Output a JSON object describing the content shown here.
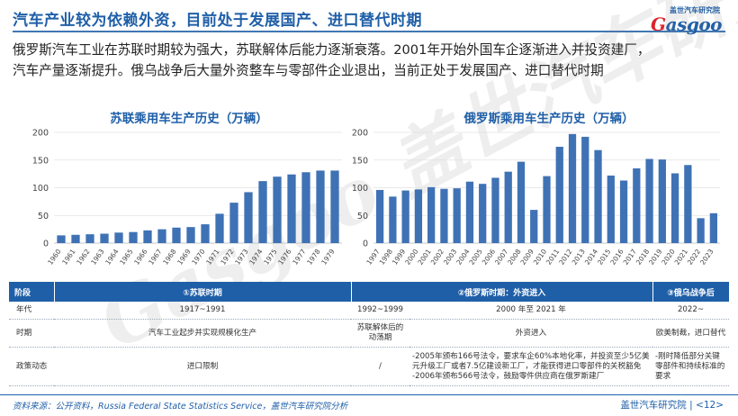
{
  "header": {
    "title": "汽车产业较为依赖外资，目前处于发展国产、进口替代时期",
    "logo_top": "盖世汽车研究院",
    "logo_main_a": "G",
    "logo_main_b": "asgoo"
  },
  "description": [
    "俄罗斯汽车工业在苏联时期较为强大，苏联解体后能力逐渐衰落。2001年开始外国车企逐渐进入并投资建厂，",
    "汽车产量逐渐提升。俄乌战争后大量外资整车与零部件企业退出，当前正处于发展国产、进口替代时期"
  ],
  "watermark": "Gasgoo 盖世汽车研究院",
  "chart_data": [
    {
      "type": "bar",
      "title": "苏联乘用车生产历史（万辆）",
      "categories": [
        "1960",
        "1961",
        "1962",
        "1963",
        "1964",
        "1965",
        "1966",
        "1967",
        "1968",
        "1969",
        "1970",
        "1971",
        "1972",
        "1973",
        "1974",
        "1975",
        "1976",
        "1977",
        "1978",
        "1979"
      ],
      "values": [
        14,
        15,
        16,
        17,
        19,
        20,
        23,
        25,
        28,
        29,
        34,
        53,
        73,
        92,
        112,
        120,
        124,
        128,
        131,
        131
      ],
      "ylim": [
        0,
        200
      ],
      "yticks": [
        0,
        50,
        100,
        150,
        200
      ],
      "color": "#3f72b5",
      "grid": true
    },
    {
      "type": "bar",
      "title": "俄罗斯乘用车生产历史（万辆）",
      "categories": [
        "1997",
        "1998",
        "1999",
        "2000",
        "2001",
        "2002",
        "2003",
        "2004",
        "2005",
        "2006",
        "2007",
        "2008",
        "2009",
        "2010",
        "2011",
        "2012",
        "2013",
        "2014",
        "2015",
        "2016",
        "2017",
        "2018",
        "2019",
        "2020",
        "2021",
        "2022",
        "2023"
      ],
      "values": [
        96,
        84,
        95,
        97,
        101,
        98,
        99,
        111,
        107,
        118,
        129,
        147,
        60,
        121,
        174,
        197,
        192,
        168,
        122,
        113,
        135,
        152,
        151,
        126,
        141,
        45,
        54
      ],
      "ylim": [
        0,
        200
      ],
      "yticks": [
        0,
        50,
        100,
        150,
        200
      ],
      "color": "#3f72b5",
      "grid": true
    }
  ],
  "table": {
    "headers": [
      "阶段",
      "①苏联时期",
      "②俄罗斯时期：外资进入",
      "③俄乌战争后"
    ],
    "rows": [
      {
        "label": "年代",
        "c1": "1917~1991",
        "c2": "1992~1999",
        "c3": "2000 年至 2021 年",
        "c4": "2022~"
      },
      {
        "label": "时期",
        "c1": "汽车工业起步并实现规模化生产",
        "c2": "苏联解体后的动荡期",
        "c3": "外资进入",
        "c4": "欧美制裁，进口替代"
      },
      {
        "label": "政策动态",
        "c1": "进口限制",
        "c2": "/",
        "c3": "-2005年颁布166号法令，要求车企60%本地化率，并投资至少5亿美元升级工厂或者7.5亿建设新工厂，才能获得进口零部件的关税豁免\n-2006年颁布566号法令，鼓励零件供应商在俄罗斯建厂",
        "c4": "-刚时降低部分关键零部件和持续标准的要求"
      }
    ]
  },
  "footer": {
    "source": "资料来源：公开资料，Russia Federal State Statistics Service，盖世汽车研究院分析",
    "brand": "盖世汽车研究院",
    "page": "|  <12>"
  }
}
